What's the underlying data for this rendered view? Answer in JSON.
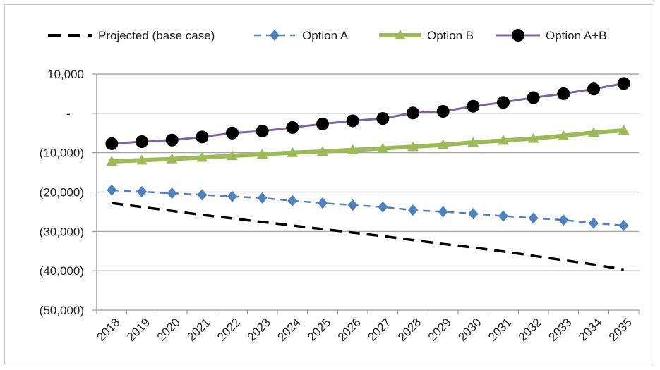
{
  "chart_data": {
    "type": "line",
    "title": "",
    "xlabel": "",
    "ylabel": "",
    "categories": [
      "2018",
      "2019",
      "2020",
      "2021",
      "2022",
      "2023",
      "2024",
      "2025",
      "2026",
      "2027",
      "2028",
      "2029",
      "2030",
      "2031",
      "2032",
      "2033",
      "2034",
      "2035"
    ],
    "ylim": [
      -50000,
      10000
    ],
    "yticks": [
      10000,
      0,
      -10000,
      -20000,
      -30000,
      -40000,
      -50000
    ],
    "ytick_labels": [
      "10,000",
      "-",
      "(10,000)",
      "(20,000)",
      "(30,000)",
      "(40,000)",
      "(50,000)"
    ],
    "grid": "horizontal",
    "legend_position": "top",
    "series": [
      {
        "name": "Projected (base case)",
        "color": "#000000",
        "style": "dashed",
        "marker": "none",
        "values": [
          -22800,
          -23800,
          -24800,
          -25800,
          -26700,
          -27600,
          -28500,
          -29400,
          -30300,
          -31200,
          -32200,
          -33200,
          -34100,
          -35100,
          -36200,
          -37300,
          -38400,
          -39700
        ]
      },
      {
        "name": "Option A",
        "color": "#4f81bd",
        "style": "dashed",
        "marker": "diamond",
        "values": [
          -19500,
          -19900,
          -20300,
          -20700,
          -21100,
          -21500,
          -22200,
          -22800,
          -23300,
          -23800,
          -24600,
          -25000,
          -25500,
          -26100,
          -26600,
          -27100,
          -27900,
          -28500
        ]
      },
      {
        "name": "Option B",
        "color": "#9bbb59",
        "style": "solid",
        "marker": "triangle",
        "values": [
          -12200,
          -11900,
          -11600,
          -11200,
          -10800,
          -10400,
          -10000,
          -9700,
          -9300,
          -8900,
          -8500,
          -8000,
          -7400,
          -6900,
          -6400,
          -5700,
          -4900,
          -4300
        ]
      },
      {
        "name": "Option A+B",
        "color": "#8064a2",
        "style": "solid",
        "marker": "circle",
        "values": [
          -7700,
          -7200,
          -6800,
          -6000,
          -5000,
          -4500,
          -3600,
          -2700,
          -1900,
          -1300,
          100,
          500,
          1800,
          2800,
          4000,
          5000,
          6200,
          7600
        ]
      }
    ]
  }
}
